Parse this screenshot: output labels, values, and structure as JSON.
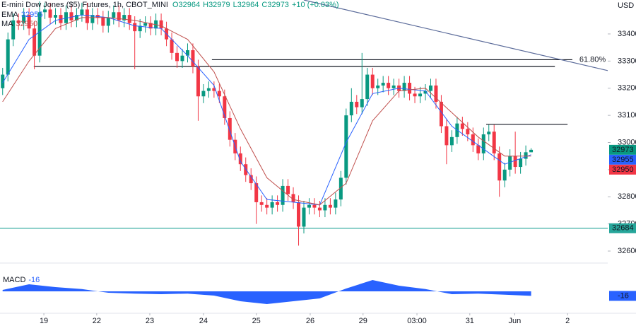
{
  "chart_data": {
    "type": "candlestick",
    "title": "E-mini Dow Jones ($5) Futures, 1h, CBOT_MINI",
    "ohlc_legend": [
      "O32964",
      "H32979",
      "L32964",
      "C32973",
      "+10 (+0.03%)"
    ],
    "currency": "USD",
    "up_color": "#089981",
    "down_color": "#f23645",
    "xlim": [
      0,
      115
    ],
    "ylim": [
      32561,
      33525
    ],
    "yticks": [
      32600,
      32700,
      32800,
      32900,
      33000,
      33100,
      33200,
      33300,
      33400
    ],
    "xticks": [
      {
        "value": 8.3,
        "label": "19"
      },
      {
        "value": 18.3,
        "label": "22"
      },
      {
        "value": 28.35,
        "label": "23"
      },
      {
        "value": 38.5,
        "label": "24"
      },
      {
        "value": 48.5,
        "label": "25"
      },
      {
        "value": 58.7,
        "label": "26"
      },
      {
        "value": 68.7,
        "label": "29"
      },
      {
        "value": 78.9,
        "label": "03:00"
      },
      {
        "value": 88.9,
        "label": "31"
      },
      {
        "value": 97.4,
        "label": "Jun"
      },
      {
        "value": 107.4,
        "label": "2"
      }
    ],
    "open": [
      33200,
      33250,
      33380,
      33450,
      33440,
      33470,
      33420,
      33320,
      33480,
      33490,
      33460,
      33470,
      33440,
      33480,
      33450,
      33470,
      33490,
      33440,
      33470,
      33460,
      33430,
      33460,
      33480,
      33450,
      33470,
      33440,
      33410,
      33430,
      33440,
      33420,
      33450,
      33420,
      33380,
      33330,
      33300,
      33320,
      33340,
      33280,
      33170,
      33190,
      33200,
      33190,
      33170,
      33090,
      33010,
      32960,
      32920,
      32880,
      32850,
      32780,
      32770,
      32760,
      32780,
      32770,
      32840,
      32810,
      32780,
      32690,
      32760,
      32770,
      32760,
      32750,
      32770,
      32760,
      32790,
      32870,
      33100,
      33150,
      33130,
      33160,
      33250,
      33200,
      33210,
      33220,
      33200,
      33210,
      33190,
      33220,
      33180,
      33170,
      33180,
      33190,
      33210,
      33150,
      33060,
      32990,
      33020,
      33070,
      33050,
      33030,
      32990,
      32960,
      33030,
      33040,
      32960,
      32860,
      32900,
      32950,
      32910,
      32940,
      32964
    ],
    "high": [
      33275,
      33405,
      33475,
      33475,
      33495,
      33495,
      33445,
      33520,
      33515,
      33515,
      33495,
      33495,
      33505,
      33505,
      33495,
      33515,
      33515,
      33495,
      33495,
      33485,
      33485,
      33505,
      33505,
      33495,
      33495,
      33465,
      33455,
      33465,
      33465,
      33475,
      33475,
      33445,
      33405,
      33355,
      33345,
      33365,
      33365,
      33305,
      33215,
      33225,
      33225,
      33215,
      33195,
      33115,
      33035,
      32985,
      32945,
      32905,
      32875,
      32805,
      32795,
      32805,
      32805,
      32865,
      32865,
      32835,
      32805,
      32785,
      32795,
      32795,
      32785,
      32795,
      32795,
      32815,
      32895,
      33125,
      33200,
      33175,
      33330,
      33275,
      33275,
      33235,
      33245,
      33245,
      33235,
      33235,
      33245,
      33245,
      33205,
      33205,
      33215,
      33235,
      33235,
      33175,
      33085,
      33045,
      33095,
      33095,
      33075,
      33055,
      33015,
      33055,
      33065,
      33065,
      32985,
      32925,
      32975,
      33040,
      32965,
      32989,
      32979
    ],
    "low": [
      33175,
      33225,
      33355,
      33415,
      33415,
      33395,
      33270,
      33295,
      33455,
      33435,
      33435,
      33415,
      33415,
      33425,
      33425,
      33445,
      33415,
      33415,
      33435,
      33405,
      33405,
      33435,
      33425,
      33425,
      33415,
      33270,
      33385,
      33405,
      33395,
      33395,
      33395,
      33355,
      33305,
      33275,
      33275,
      33295,
      33255,
      33080,
      33145,
      33165,
      33165,
      33145,
      33065,
      32985,
      32935,
      32895,
      32855,
      32825,
      32700,
      32745,
      32735,
      32735,
      32745,
      32745,
      32785,
      32755,
      32620,
      32665,
      32735,
      32735,
      32725,
      32725,
      32735,
      32735,
      32765,
      32845,
      33075,
      33105,
      33105,
      33135,
      33175,
      33175,
      33185,
      33175,
      33175,
      33165,
      33165,
      33155,
      33145,
      33145,
      33155,
      33165,
      33125,
      33035,
      32920,
      32965,
      32995,
      33025,
      33005,
      32965,
      32935,
      32935,
      33005,
      32935,
      32800,
      32835,
      32875,
      32885,
      32885,
      32915,
      32964
    ],
    "close": [
      33250,
      33380,
      33450,
      33440,
      33470,
      33420,
      33320,
      33480,
      33490,
      33460,
      33470,
      33440,
      33480,
      33450,
      33470,
      33490,
      33440,
      33470,
      33460,
      33430,
      33460,
      33480,
      33450,
      33470,
      33440,
      33410,
      33430,
      33440,
      33420,
      33450,
      33420,
      33380,
      33330,
      33300,
      33320,
      33340,
      33280,
      33170,
      33190,
      33200,
      33190,
      33170,
      33090,
      33010,
      32960,
      32920,
      32880,
      32850,
      32780,
      32770,
      32760,
      32780,
      32770,
      32840,
      32810,
      32780,
      32690,
      32760,
      32770,
      32760,
      32750,
      32770,
      32760,
      32790,
      32870,
      33100,
      33150,
      33130,
      33160,
      33250,
      33200,
      33210,
      33220,
      33200,
      33210,
      33190,
      33220,
      33180,
      33170,
      33180,
      33190,
      33210,
      33150,
      33060,
      32990,
      33020,
      33070,
      33050,
      33030,
      32990,
      32960,
      33030,
      33040,
      32960,
      32860,
      32900,
      32950,
      32910,
      32940,
      32964,
      32973
    ],
    "indicators": [
      {
        "name": "EMA",
        "color": "#2962ff",
        "x": [
          0.5,
          5.5,
          10.5,
          15.5,
          20.5,
          25.5,
          30.5,
          35.5,
          40.5,
          45.5,
          50.5,
          55.5,
          60.5,
          65.5,
          70.5,
          75.5,
          80.5,
          85.5,
          90.5,
          95.5,
          100.5
        ],
        "values": [
          33220,
          33380,
          33450,
          33470,
          33460,
          33430,
          33420,
          33320,
          33210,
          32930,
          32790,
          32780,
          32770,
          33000,
          33180,
          33200,
          33190,
          33060,
          32990,
          32920,
          32955
        ]
      },
      {
        "name": "MA",
        "color": "#c0504d",
        "x": [
          0.5,
          5.5,
          10.5,
          15.5,
          20.5,
          25.5,
          30.5,
          35.5,
          40.5,
          45.5,
          50.5,
          55.5,
          60.5,
          65.5,
          70.5,
          75.5,
          80.5,
          85.5,
          90.5,
          95.5,
          100.5
        ],
        "values": [
          33150,
          33300,
          33420,
          33460,
          33460,
          33450,
          33430,
          33380,
          33260,
          33050,
          32870,
          32790,
          32770,
          32850,
          33080,
          33190,
          33200,
          33110,
          33020,
          32950,
          32950
        ]
      }
    ],
    "levels": [
      {
        "value": 33280,
        "x": [
          6.4,
          105
        ],
        "color": "#131722"
      },
      {
        "value": 33305,
        "x": [
          40.1,
          108.3
        ],
        "color": "#131722",
        "label": "61.80%"
      },
      {
        "value": 33067,
        "x": [
          92,
          107.4
        ],
        "color": "#131722"
      },
      {
        "value": 32684,
        "x": [
          0,
          115
        ],
        "color": "#26a69a"
      }
    ],
    "trendline": {
      "x": [
        57.5,
        115
      ],
      "y": [
        33525,
        33265
      ],
      "color": "#5b6b9a"
    },
    "price_labels": [
      {
        "value": 32973,
        "color": "#089981"
      },
      {
        "value": 32955,
        "color": "#2962ff"
      },
      {
        "value": 32950,
        "color": "#f23645"
      },
      {
        "value": 32684,
        "color": "#26a69a"
      }
    ],
    "macd": {
      "name": "MACD",
      "color": "#2962ff",
      "ylim": [
        -80,
        80
      ],
      "x": [
        0.5,
        5.5,
        10.5,
        15.5,
        20.5,
        25.5,
        30.5,
        35.5,
        40.5,
        45.5,
        50.5,
        55.5,
        60.5,
        65.5,
        70.5,
        75.5,
        80.5,
        85.5,
        90.5,
        95.5,
        100.5
      ],
      "values": [
        5,
        25,
        15,
        8,
        -5,
        -8,
        -10,
        -8,
        -15,
        -35,
        -45,
        -35,
        -25,
        10,
        40,
        20,
        8,
        -10,
        -8,
        -12,
        -16
      ]
    }
  }
}
